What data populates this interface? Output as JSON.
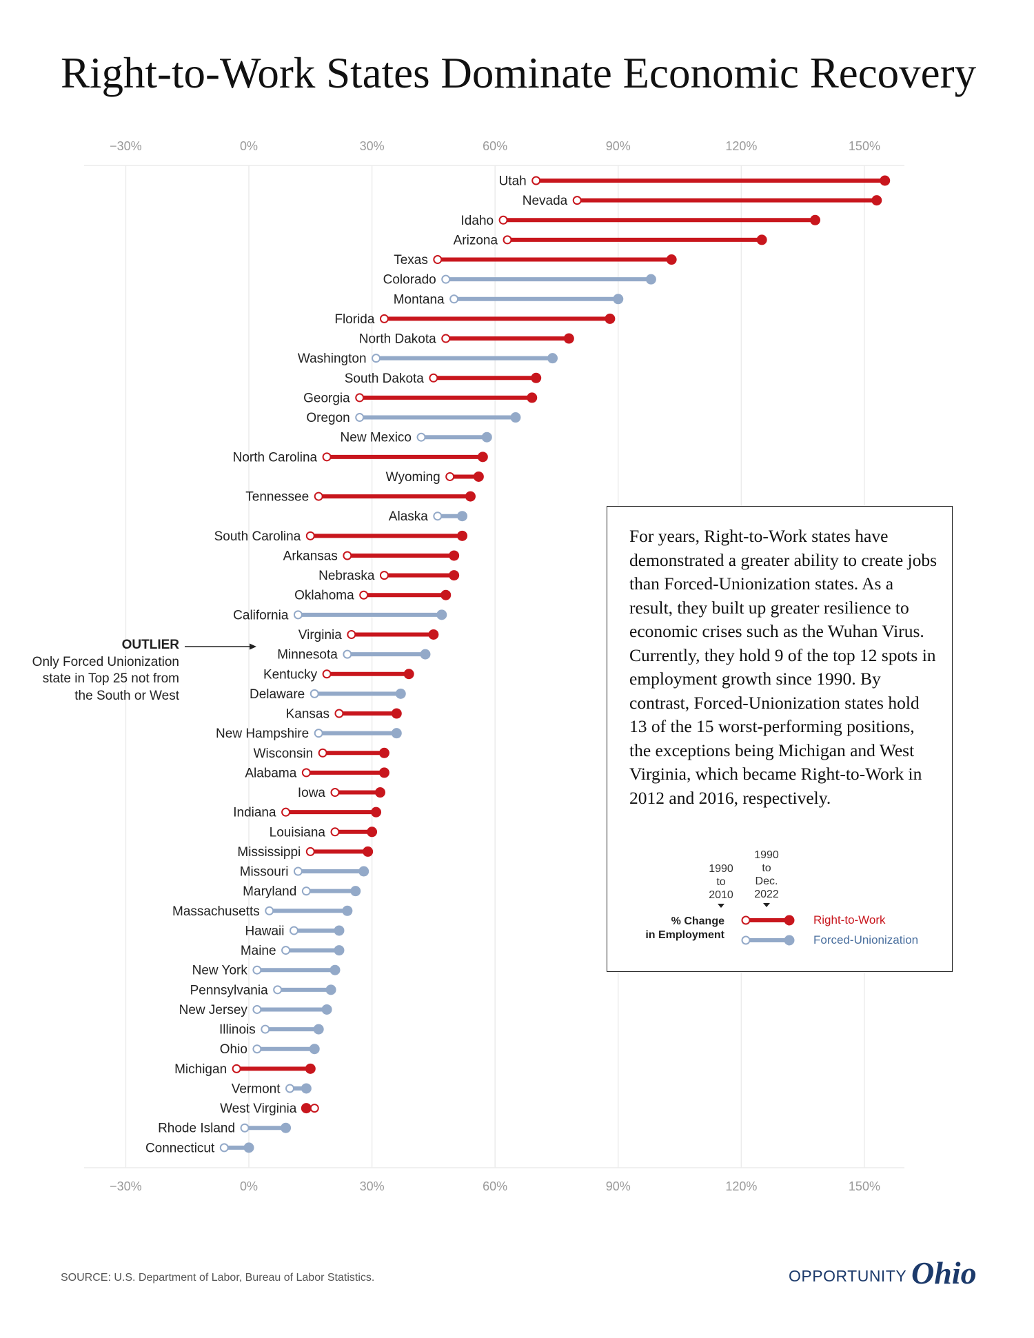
{
  "title": "Right-to-Work States Dominate Economic Recovery",
  "colors": {
    "right_to_work": "#c8161d",
    "forced_unionization": "#93a9c8",
    "gridline": "#ececec"
  },
  "chart_data": {
    "type": "dumbbell",
    "title": "Right-to-Work States Dominate Economic Recovery",
    "x_axis_ticks": [
      "−30%",
      "0%",
      "30%",
      "60%",
      "90%",
      "120%",
      "150%"
    ],
    "x_tick_values": [
      -30,
      0,
      30,
      60,
      90,
      120,
      150
    ],
    "xlim": [
      -40,
      160
    ],
    "grid": true,
    "legend": {
      "start_label": "1990\nto\n2010",
      "end_label": "1990\nto\nDec.\n2022",
      "caption": "% Change\nin Employment",
      "series": [
        {
          "key": "rtw",
          "name": "Right-to-Work"
        },
        {
          "key": "fu",
          "name": "Forced-Unionization"
        }
      ]
    },
    "states": [
      {
        "name": "Utah",
        "group": "rtw",
        "start": 70,
        "end": 155
      },
      {
        "name": "Nevada",
        "group": "rtw",
        "start": 80,
        "end": 153
      },
      {
        "name": "Idaho",
        "group": "rtw",
        "start": 62,
        "end": 138
      },
      {
        "name": "Arizona",
        "group": "rtw",
        "start": 63,
        "end": 125
      },
      {
        "name": "Texas",
        "group": "rtw",
        "start": 46,
        "end": 103
      },
      {
        "name": "Colorado",
        "group": "fu",
        "start": 48,
        "end": 98
      },
      {
        "name": "Montana",
        "group": "fu",
        "start": 50,
        "end": 90
      },
      {
        "name": "Florida",
        "group": "rtw",
        "start": 33,
        "end": 88
      },
      {
        "name": "North Dakota",
        "group": "rtw",
        "start": 48,
        "end": 78
      },
      {
        "name": "Washington",
        "group": "fu",
        "start": 31,
        "end": 74
      },
      {
        "name": "South Dakota",
        "group": "rtw",
        "start": 45,
        "end": 70
      },
      {
        "name": "Georgia",
        "group": "rtw",
        "start": 27,
        "end": 69
      },
      {
        "name": "Oregon",
        "group": "fu",
        "start": 27,
        "end": 65
      },
      {
        "name": "New Mexico",
        "group": "fu",
        "start": 42,
        "end": 58
      },
      {
        "name": "North Carolina",
        "group": "rtw",
        "start": 19,
        "end": 57
      },
      {
        "name": "Wyoming",
        "group": "rtw",
        "start": 49,
        "end": 56
      },
      {
        "name": "Tennessee",
        "group": "rtw",
        "start": 17,
        "end": 54
      },
      {
        "name": "Alaska",
        "group": "fu",
        "start": 46,
        "end": 52
      },
      {
        "name": "South Carolina",
        "group": "rtw",
        "start": 15,
        "end": 52
      },
      {
        "name": "Arkansas",
        "group": "rtw",
        "start": 24,
        "end": 50
      },
      {
        "name": "Nebraska",
        "group": "rtw",
        "start": 33,
        "end": 50
      },
      {
        "name": "Oklahoma",
        "group": "rtw",
        "start": 28,
        "end": 48
      },
      {
        "name": "California",
        "group": "fu",
        "start": 12,
        "end": 47
      },
      {
        "name": "Virginia",
        "group": "rtw",
        "start": 25,
        "end": 45
      },
      {
        "name": "Minnesota",
        "group": "fu",
        "start": 24,
        "end": 43
      },
      {
        "name": "Kentucky",
        "group": "rtw",
        "start": 19,
        "end": 39
      },
      {
        "name": "Delaware",
        "group": "fu",
        "start": 16,
        "end": 37
      },
      {
        "name": "Kansas",
        "group": "rtw",
        "start": 22,
        "end": 36
      },
      {
        "name": "New Hampshire",
        "group": "fu",
        "start": 17,
        "end": 36
      },
      {
        "name": "Wisconsin",
        "group": "rtw",
        "start": 18,
        "end": 33
      },
      {
        "name": "Alabama",
        "group": "rtw",
        "start": 14,
        "end": 33
      },
      {
        "name": "Iowa",
        "group": "rtw",
        "start": 21,
        "end": 32
      },
      {
        "name": "Indiana",
        "group": "rtw",
        "start": 9,
        "end": 31
      },
      {
        "name": "Louisiana",
        "group": "rtw",
        "start": 21,
        "end": 30
      },
      {
        "name": "Mississippi",
        "group": "rtw",
        "start": 15,
        "end": 29
      },
      {
        "name": "Missouri",
        "group": "fu",
        "start": 12,
        "end": 28
      },
      {
        "name": "Maryland",
        "group": "fu",
        "start": 14,
        "end": 26
      },
      {
        "name": "Massachusetts",
        "group": "fu",
        "start": 5,
        "end": 24
      },
      {
        "name": "Hawaii",
        "group": "fu",
        "start": 11,
        "end": 22
      },
      {
        "name": "Maine",
        "group": "fu",
        "start": 9,
        "end": 22
      },
      {
        "name": "New York",
        "group": "fu",
        "start": 2,
        "end": 21
      },
      {
        "name": "Pennsylvania",
        "group": "fu",
        "start": 7,
        "end": 20
      },
      {
        "name": "New Jersey",
        "group": "fu",
        "start": 2,
        "end": 19
      },
      {
        "name": "Illinois",
        "group": "fu",
        "start": 4,
        "end": 17
      },
      {
        "name": "Ohio",
        "group": "fu",
        "start": 2,
        "end": 16
      },
      {
        "name": "Michigan",
        "group": "rtw",
        "start": -3,
        "end": 15
      },
      {
        "name": "Vermont",
        "group": "fu",
        "start": 10,
        "end": 14
      },
      {
        "name": "West Virginia",
        "group": "rtw",
        "start": 16,
        "end": 14
      },
      {
        "name": "Rhode Island",
        "group": "fu",
        "start": -1,
        "end": 9
      },
      {
        "name": "Connecticut",
        "group": "fu",
        "start": -6,
        "end": 0
      }
    ]
  },
  "outlier": {
    "title": "OUTLIER",
    "text": "Only Forced Unionization state in Top 25 not from the South or West"
  },
  "note": "For years, Right-to-Work states have demonstrated a greater ability to create jobs than Forced-Unionization states. As a result, they built up greater resilience to economic crises such as the Wuhan Virus. Currently, they hold 9 of the top 12 spots in employment growth since 1990. By contrast, Forced-Unionization states hold 13 of the 15 worst-performing positions, the exceptions being Michigan and West Virginia, which became Right-to-Work in 2012 and 2016, respectively.",
  "source": "SOURCE: U.S. Department of Labor, Bureau of Labor Statistics.",
  "brand": {
    "word1": "OPPORTUNITY",
    "word2": "Ohio"
  }
}
